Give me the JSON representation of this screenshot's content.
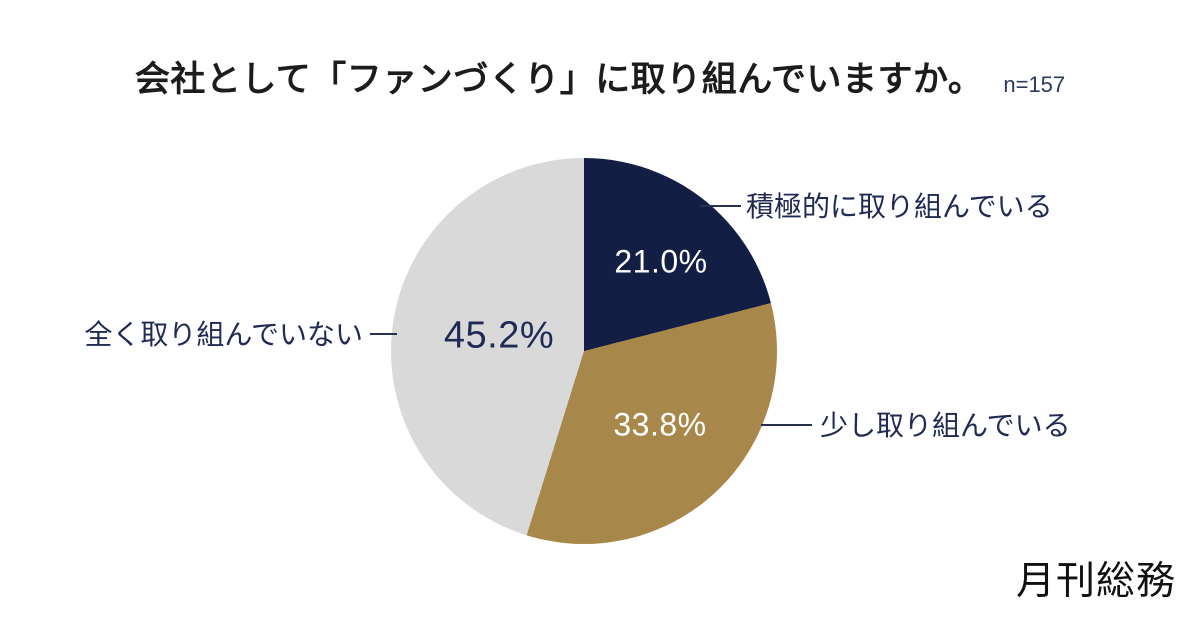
{
  "title": {
    "text": "会社として「ファンづくり」に取り組んでいますか。",
    "sample_label": "n=157"
  },
  "theme": {
    "background": "#ffffff",
    "title_color": "#1c1c1c",
    "text_navy": "#202b55",
    "sample_color": "#2b3a60",
    "callout_line_color": "#26304f",
    "logo_color": "#111111"
  },
  "logo": {
    "text": "月刊総務"
  },
  "chart_data": {
    "type": "pie",
    "title": "会社として「ファンづくり」に取り組んでいますか。",
    "sample_size": "n=157",
    "start_angle_deg": 0,
    "direction": "clockwise",
    "legend_position": "callout-labels",
    "slices": [
      {
        "label": "積極的に取り組んでいる",
        "value_pct": 21.0,
        "display": "21.0%",
        "color": "#131e45",
        "pct_label_color": "#ffffff"
      },
      {
        "label": "少し取り組んでいる",
        "value_pct": 33.8,
        "display": "33.8%",
        "color": "#a8884a",
        "pct_label_color": "#ffffff"
      },
      {
        "label": "全く取り組んでいない",
        "value_pct": 45.2,
        "display": "45.2%",
        "color": "#d9d9d9",
        "pct_label_color": "#202b55"
      }
    ]
  }
}
